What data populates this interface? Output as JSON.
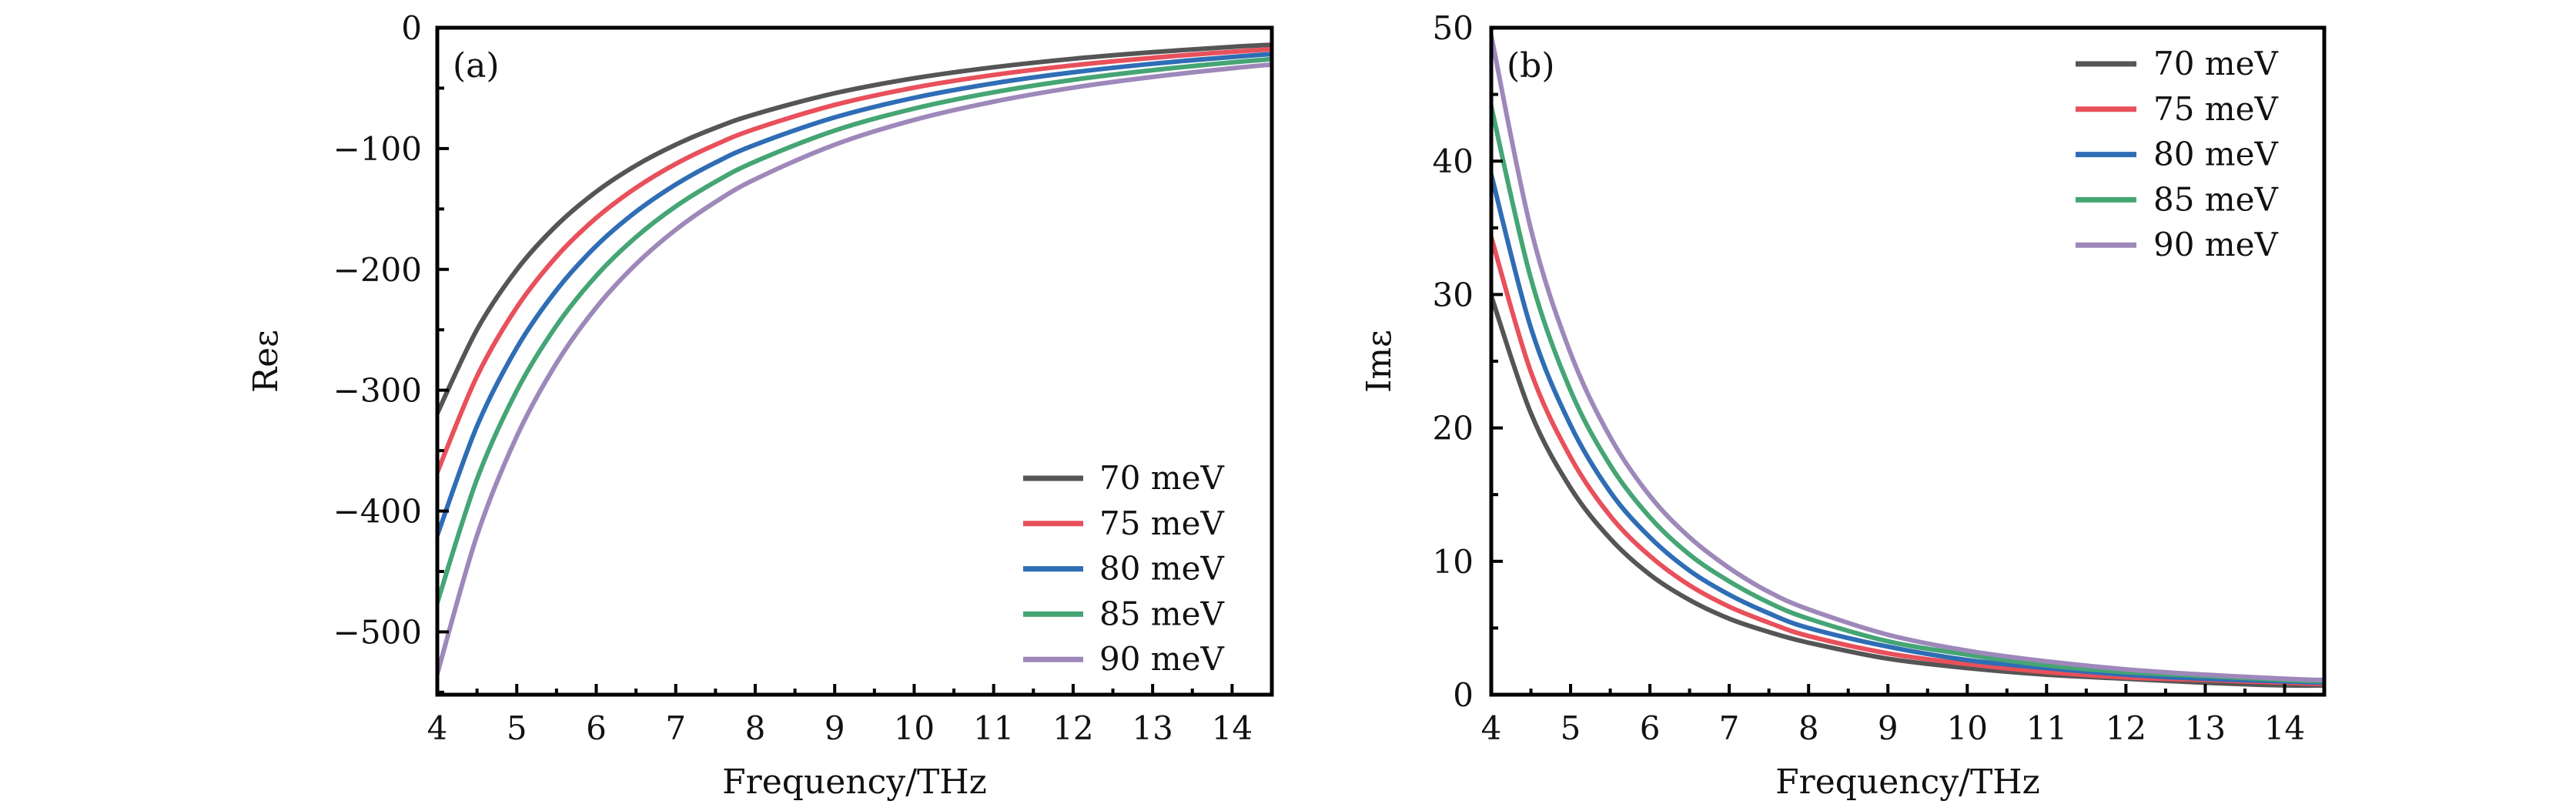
{
  "chart_data": [
    {
      "type": "line",
      "panel_label": "(a)",
      "title": "",
      "xlabel": "Frequency/THz",
      "ylabel": "Reε",
      "xlim": [
        4,
        14.5
      ],
      "ylim": [
        -552,
        0
      ],
      "xticks": [
        4,
        5,
        6,
        7,
        8,
        9,
        10,
        11,
        12,
        13,
        14
      ],
      "xtick_labels": [
        "4",
        "5",
        "6",
        "7",
        "8",
        "9",
        "10",
        "11",
        "12",
        "13",
        "14"
      ],
      "xminor_step": 0.5,
      "yticks": [
        0,
        -100,
        -200,
        -300,
        -400,
        -500
      ],
      "ytick_labels": [
        "0",
        "−100",
        "−200",
        "−300",
        "−400",
        "−500"
      ],
      "yminor_step": 50,
      "grid": false,
      "legend_position": "bottom-right",
      "x": [
        4,
        4.5,
        5,
        5.5,
        6,
        6.5,
        7,
        7.5,
        8,
        9,
        10,
        11,
        12,
        13,
        14,
        14.5
      ],
      "series": [
        {
          "name": "70 meV",
          "color": "#555555",
          "values": [
            -319.1,
            -249.8,
            -200.3,
            -163.6,
            -135.7,
            -114.0,
            -96.8,
            -82.9,
            -71.5,
            -54.2,
            -41.8,
            -32.7,
            -25.7,
            -20.3,
            -15.9,
            -14.1
          ]
        },
        {
          "name": "75 meV",
          "color": "#e8505b",
          "values": [
            -367.9,
            -288.4,
            -231.5,
            -189.4,
            -157.4,
            -132.5,
            -112.7,
            -96.8,
            -83.7,
            -63.9,
            -49.6,
            -39.1,
            -31.1,
            -24.9,
            -19.9,
            -17.8
          ]
        },
        {
          "name": "80 meV",
          "color": "#2f6db5",
          "values": [
            -420.2,
            -329.7,
            -265.0,
            -217.1,
            -180.6,
            -152.3,
            -129.8,
            -111.6,
            -96.8,
            -74.2,
            -58.0,
            -46.0,
            -36.9,
            -29.8,
            -24.2,
            -21.8
          ]
        },
        {
          "name": "85 meV",
          "color": "#45a574",
          "values": [
            -475.8,
            -373.6,
            -300.5,
            -246.5,
            -205.3,
            -173.3,
            -147.9,
            -127.5,
            -110.7,
            -85.1,
            -66.9,
            -53.4,
            -43.1,
            -35.1,
            -28.7,
            -26.0
          ]
        },
        {
          "name": "90 meV",
          "color": "#9e88ba",
          "values": [
            -534.7,
            -420.2,
            -338.2,
            -277.6,
            -231.5,
            -195.7,
            -167.2,
            -144.2,
            -125.4,
            -96.8,
            -76.3,
            -61.2,
            -49.6,
            -40.7,
            -33.5,
            -30.5
          ]
        }
      ]
    },
    {
      "type": "line",
      "panel_label": "(b)",
      "title": "",
      "xlabel": "Frequency/THz",
      "ylabel": "Imε",
      "xlim": [
        4,
        14.5
      ],
      "ylim": [
        0,
        50
      ],
      "xticks": [
        4,
        5,
        6,
        7,
        8,
        9,
        10,
        11,
        12,
        13,
        14
      ],
      "xtick_labels": [
        "4",
        "5",
        "6",
        "7",
        "8",
        "9",
        "10",
        "11",
        "12",
        "13",
        "14"
      ],
      "xminor_step": 0.5,
      "yticks": [
        0,
        10,
        20,
        30,
        40,
        50
      ],
      "ytick_labels": [
        "0",
        "10",
        "20",
        "30",
        "40",
        "50"
      ],
      "yminor_step": 5,
      "grid": false,
      "legend_position": "top-right",
      "x": [
        4,
        4.5,
        5,
        5.5,
        6,
        6.5,
        7,
        7.5,
        8,
        9,
        10,
        11,
        12,
        13,
        14,
        14.5
      ],
      "series": [
        {
          "name": "70 meV",
          "color": "#555555",
          "values": [
            29.9,
            21.1,
            15.5,
            11.7,
            9.0,
            7.1,
            5.7,
            4.7,
            3.9,
            2.7,
            2.0,
            1.5,
            1.2,
            0.9,
            0.7,
            0.7
          ]
        },
        {
          "name": "75 meV",
          "color": "#e8505b",
          "values": [
            34.3,
            24.2,
            17.8,
            13.4,
            10.4,
            8.2,
            6.6,
            5.4,
            4.4,
            3.1,
            2.3,
            1.7,
            1.3,
            1.1,
            0.9,
            0.8
          ]
        },
        {
          "name": "80 meV",
          "color": "#2f6db5",
          "values": [
            39.0,
            27.5,
            20.2,
            15.2,
            11.8,
            9.3,
            7.5,
            6.1,
            5.0,
            3.6,
            2.6,
            2.0,
            1.5,
            1.2,
            1.0,
            0.9
          ]
        },
        {
          "name": "85 meV",
          "color": "#45a574",
          "values": [
            44.1,
            31.2,
            22.8,
            17.2,
            13.3,
            10.5,
            8.5,
            6.9,
            5.7,
            4.0,
            3.0,
            2.2,
            1.7,
            1.4,
            1.1,
            1.0
          ]
        },
        {
          "name": "90 meV",
          "color": "#9e88ba",
          "values": [
            49.4,
            34.9,
            25.6,
            19.3,
            14.9,
            11.8,
            9.5,
            7.7,
            6.4,
            4.5,
            3.3,
            2.5,
            1.9,
            1.5,
            1.2,
            1.1
          ]
        }
      ]
    }
  ]
}
